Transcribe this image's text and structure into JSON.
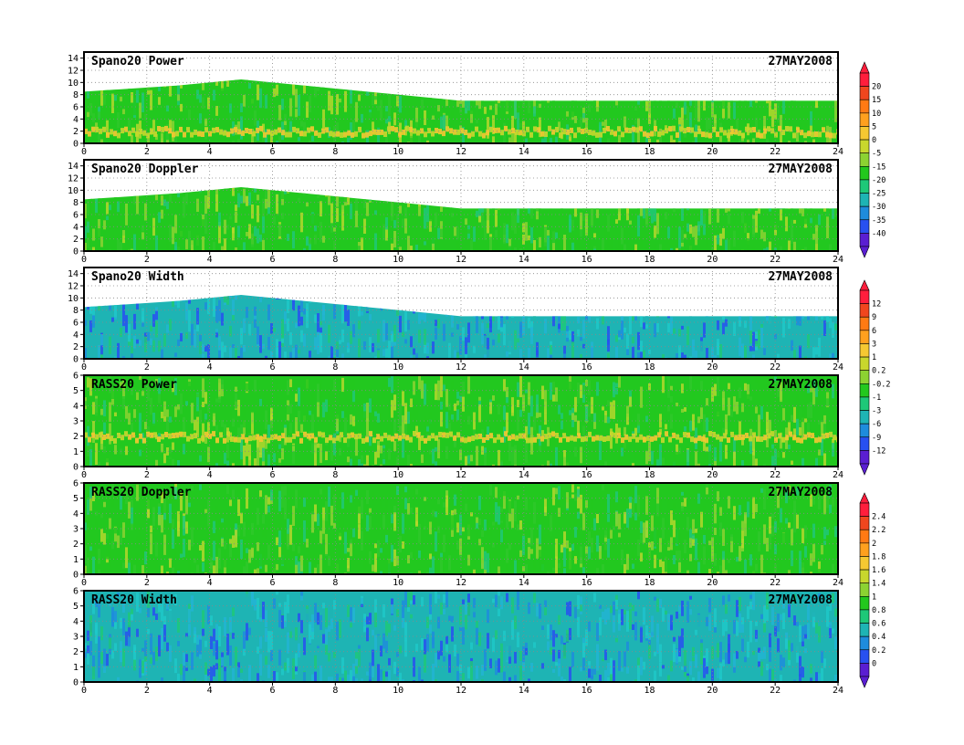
{
  "date": "27MAY2008",
  "colors": {
    "fill": "#22c81f",
    "frame": "#000000",
    "grid": "#888888"
  },
  "colorbars": [
    {
      "name": "power-colorbar",
      "labels": [
        "20",
        "15",
        "10",
        "5",
        "0",
        "-5",
        "-15",
        "-20",
        "-25",
        "-30",
        "-35",
        "-40"
      ],
      "colors": [
        "#ff1e3c",
        "#f0461e",
        "#ff7a14",
        "#ffa01e",
        "#f5c832",
        "#c8d72d",
        "#8cd232",
        "#23c81e",
        "#1ec878",
        "#1eb4b4",
        "#1e8cdc",
        "#2850f0",
        "#5a1ed2"
      ]
    },
    {
      "name": "width-colorbar",
      "labels": [
        "12",
        "9",
        "6",
        "3",
        "1",
        "0.2",
        "-0.2",
        "-1",
        "-3",
        "-6",
        "-9",
        "-12"
      ],
      "colors": [
        "#ff1e3c",
        "#f0461e",
        "#ff7a14",
        "#ffa01e",
        "#f5c832",
        "#c8d72d",
        "#8cd232",
        "#23c81e",
        "#1ec878",
        "#1eb4b4",
        "#1e8cdc",
        "#2850f0",
        "#5a1ed2"
      ]
    },
    {
      "name": "rass-width-colorbar",
      "labels": [
        "2.4",
        "2.2",
        "2",
        "1.8",
        "1.6",
        "1.4",
        "1",
        "0.8",
        "0.6",
        "0.4",
        "0.2",
        "0"
      ],
      "colors": [
        "#ff1e3c",
        "#f0461e",
        "#ff7a14",
        "#ffa01e",
        "#f5c832",
        "#c8d72d",
        "#8cd232",
        "#23c81e",
        "#1ec878",
        "#1eb4b4",
        "#1e8cdc",
        "#2850f0",
        "#5a1ed2"
      ]
    }
  ],
  "chart_data": [
    {
      "type": "heatmap",
      "title": "Spano20 Power",
      "date": "27MAY2008",
      "x_ticks": [
        "0",
        "2",
        "4",
        "6",
        "8",
        "10",
        "12",
        "14",
        "16",
        "18",
        "20",
        "22",
        "24"
      ],
      "y_ticks": [
        "0",
        "2",
        "4",
        "6",
        "8",
        "10",
        "12",
        "14"
      ],
      "xlim": [
        0,
        24
      ],
      "ylim": [
        0,
        15
      ],
      "dominant_color": "green",
      "data_top": [
        [
          0,
          8.5
        ],
        [
          3,
          9.5
        ],
        [
          5,
          10.5
        ],
        [
          8,
          9
        ],
        [
          10,
          8
        ],
        [
          12,
          7
        ],
        [
          14,
          7
        ],
        [
          24,
          7
        ]
      ]
    },
    {
      "type": "heatmap",
      "title": "Spano20 Doppler",
      "date": "27MAY2008",
      "x_ticks": [
        "0",
        "2",
        "4",
        "6",
        "8",
        "10",
        "12",
        "14",
        "16",
        "18",
        "20",
        "22",
        "24"
      ],
      "y_ticks": [
        "0",
        "2",
        "4",
        "6",
        "8",
        "10",
        "12",
        "14"
      ],
      "xlim": [
        0,
        24
      ],
      "ylim": [
        0,
        15
      ],
      "dominant_color": "green",
      "data_top": [
        [
          0,
          8.5
        ],
        [
          3,
          9.5
        ],
        [
          5,
          10.5
        ],
        [
          8,
          9
        ],
        [
          10,
          8
        ],
        [
          12,
          7
        ],
        [
          14,
          7
        ],
        [
          24,
          7
        ]
      ]
    },
    {
      "type": "heatmap",
      "title": "Spano20 Width",
      "date": "27MAY2008",
      "x_ticks": [
        "0",
        "2",
        "4",
        "6",
        "8",
        "10",
        "12",
        "14",
        "16",
        "18",
        "20",
        "22",
        "24"
      ],
      "y_ticks": [
        "0",
        "2",
        "4",
        "6",
        "8",
        "10",
        "12",
        "14"
      ],
      "xlim": [
        0,
        24
      ],
      "ylim": [
        0,
        15
      ],
      "dominant_color": "blue",
      "data_top": [
        [
          0,
          8.5
        ],
        [
          3,
          9.5
        ],
        [
          5,
          10.5
        ],
        [
          8,
          9
        ],
        [
          10,
          8
        ],
        [
          12,
          7
        ],
        [
          14,
          7
        ],
        [
          24,
          7
        ]
      ]
    },
    {
      "type": "heatmap",
      "title": "RASS20 Power",
      "date": "27MAY2008",
      "x_ticks": [
        "0",
        "2",
        "4",
        "6",
        "8",
        "10",
        "12",
        "14",
        "16",
        "18",
        "20",
        "22",
        "24"
      ],
      "y_ticks": [
        "0",
        "1",
        "2",
        "3",
        "4",
        "5",
        "6"
      ],
      "xlim": [
        0,
        24
      ],
      "ylim": [
        0,
        6
      ],
      "dominant_color": "green",
      "data_top": [
        [
          0,
          6
        ],
        [
          24,
          6
        ]
      ]
    },
    {
      "type": "heatmap",
      "title": "RASS20 Doppler",
      "date": "27MAY2008",
      "x_ticks": [
        "0",
        "2",
        "4",
        "6",
        "8",
        "10",
        "12",
        "14",
        "16",
        "18",
        "20",
        "22",
        "24"
      ],
      "y_ticks": [
        "0",
        "1",
        "2",
        "3",
        "4",
        "5",
        "6"
      ],
      "xlim": [
        0,
        24
      ],
      "ylim": [
        0,
        6
      ],
      "dominant_color": "green",
      "data_top": [
        [
          0,
          6
        ],
        [
          24,
          6
        ]
      ]
    },
    {
      "type": "heatmap",
      "title": "RASS20 Width",
      "date": "27MAY2008",
      "x_ticks": [
        "0",
        "2",
        "4",
        "6",
        "8",
        "10",
        "12",
        "14",
        "16",
        "18",
        "20",
        "22",
        "24"
      ],
      "y_ticks": [
        "0",
        "1",
        "2",
        "3",
        "4",
        "5",
        "6"
      ],
      "xlim": [
        0,
        24
      ],
      "ylim": [
        0,
        6
      ],
      "dominant_color": "blue",
      "data_top": [
        [
          0,
          6
        ],
        [
          24,
          6
        ]
      ]
    }
  ]
}
